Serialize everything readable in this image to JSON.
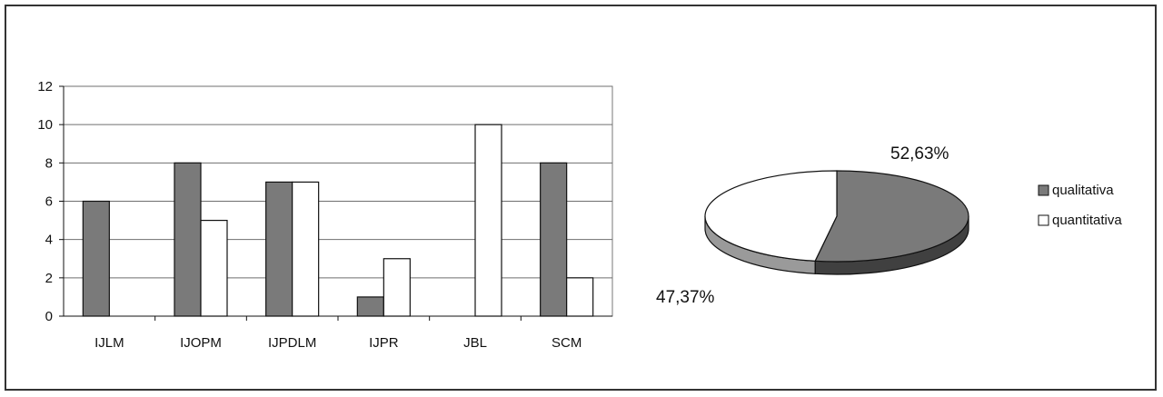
{
  "chart_data": [
    {
      "type": "bar",
      "categories": [
        "IJLM",
        "IJOPM",
        "IJPDLM",
        "IJPR",
        "JBL",
        "SCM"
      ],
      "series": [
        {
          "name": "qualitativa",
          "values": [
            6,
            8,
            7,
            1,
            0,
            8
          ]
        },
        {
          "name": "quantitativa",
          "values": [
            0,
            5,
            7,
            3,
            10,
            2
          ]
        }
      ],
      "y_ticks": [
        "0",
        "2",
        "4",
        "6",
        "8",
        "10",
        "12"
      ],
      "ylim": [
        0,
        12
      ],
      "grid": true,
      "title": "",
      "xlabel": "",
      "ylabel": ""
    },
    {
      "type": "pie",
      "slices": [
        {
          "name": "qualitativa",
          "value": 52.63,
          "label": "52,63%"
        },
        {
          "name": "quantitativa",
          "value": 47.37,
          "label": "47,37%"
        }
      ],
      "style": "3d",
      "legend_placement": "right"
    }
  ],
  "legend": [
    "qualitativa",
    "quantitativa"
  ],
  "colors": {
    "qualitativa": "#7a7a7a",
    "qualitativa_side": "#404040",
    "quantitativa": "#ffffff",
    "quantitativa_side": "#9a9a9a",
    "grid": "#6f6f6f",
    "outline": "#111111"
  }
}
